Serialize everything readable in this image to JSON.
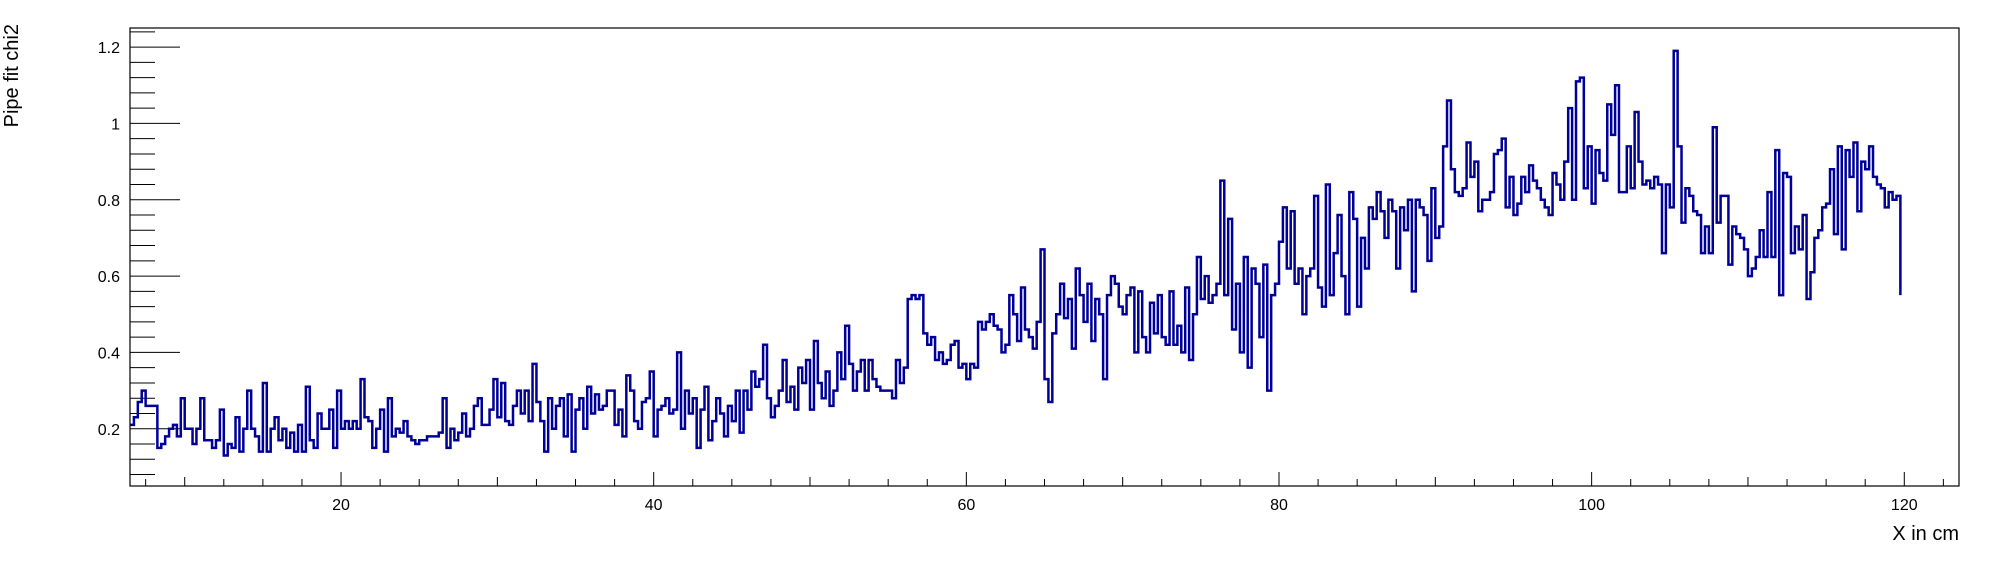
{
  "chart_data": {
    "type": "line",
    "style": "step-histogram",
    "title": "",
    "xlabel": "X in cm",
    "ylabel": "Pipe fit chi2",
    "xlim": [
      6.5,
      123.5
    ],
    "ylim": [
      0.05,
      1.25
    ],
    "xticks": [
      20,
      40,
      60,
      80,
      100,
      120
    ],
    "yticks": [
      0.2,
      0.4,
      0.6,
      0.8,
      1,
      1.2
    ],
    "xtick_labels": [
      "20",
      "40",
      "60",
      "80",
      "100",
      "120"
    ],
    "ytick_labels": [
      "0.2",
      "0.4",
      "0.6",
      "0.8",
      "1",
      "1.2"
    ],
    "grid": false,
    "legend": "none",
    "line_color": "#000099",
    "series": [
      {
        "x_start": 6.5,
        "bin_width": 0.25,
        "values": [
          0.21,
          0.23,
          0.27,
          0.3,
          0.26,
          0.26,
          0.26,
          0.15,
          0.16,
          0.18,
          0.2,
          0.21,
          0.18,
          0.28,
          0.2,
          0.2,
          0.16,
          0.2,
          0.28,
          0.17,
          0.17,
          0.15,
          0.17,
          0.25,
          0.13,
          0.16,
          0.15,
          0.23,
          0.14,
          0.2,
          0.3,
          0.2,
          0.18,
          0.14,
          0.32,
          0.14,
          0.2,
          0.23,
          0.17,
          0.2,
          0.15,
          0.19,
          0.14,
          0.21,
          0.14,
          0.31,
          0.17,
          0.15,
          0.24,
          0.2,
          0.2,
          0.25,
          0.15,
          0.3,
          0.2,
          0.22,
          0.2,
          0.22,
          0.2,
          0.33,
          0.23,
          0.22,
          0.15,
          0.2,
          0.25,
          0.14,
          0.28,
          0.18,
          0.2,
          0.19,
          0.22,
          0.18,
          0.17,
          0.16,
          0.17,
          0.17,
          0.18,
          0.18,
          0.18,
          0.19,
          0.28,
          0.15,
          0.2,
          0.17,
          0.19,
          0.24,
          0.18,
          0.2,
          0.26,
          0.28,
          0.21,
          0.21,
          0.25,
          0.33,
          0.23,
          0.32,
          0.22,
          0.21,
          0.26,
          0.3,
          0.24,
          0.3,
          0.22,
          0.37,
          0.27,
          0.22,
          0.14,
          0.28,
          0.2,
          0.26,
          0.28,
          0.18,
          0.29,
          0.14,
          0.25,
          0.28,
          0.2,
          0.31,
          0.24,
          0.29,
          0.25,
          0.26,
          0.3,
          0.3,
          0.21,
          0.25,
          0.18,
          0.34,
          0.3,
          0.22,
          0.2,
          0.27,
          0.28,
          0.35,
          0.18,
          0.25,
          0.26,
          0.28,
          0.24,
          0.25,
          0.4,
          0.2,
          0.3,
          0.24,
          0.28,
          0.15,
          0.25,
          0.31,
          0.17,
          0.22,
          0.28,
          0.24,
          0.18,
          0.26,
          0.22,
          0.3,
          0.19,
          0.3,
          0.25,
          0.35,
          0.31,
          0.33,
          0.42,
          0.28,
          0.23,
          0.26,
          0.3,
          0.38,
          0.27,
          0.31,
          0.25,
          0.36,
          0.32,
          0.38,
          0.25,
          0.43,
          0.32,
          0.28,
          0.35,
          0.26,
          0.3,
          0.4,
          0.33,
          0.47,
          0.37,
          0.3,
          0.35,
          0.38,
          0.3,
          0.38,
          0.33,
          0.31,
          0.3,
          0.3,
          0.3,
          0.28,
          0.38,
          0.32,
          0.36,
          0.54,
          0.55,
          0.54,
          0.55,
          0.45,
          0.42,
          0.44,
          0.38,
          0.4,
          0.37,
          0.38,
          0.42,
          0.43,
          0.36,
          0.37,
          0.33,
          0.37,
          0.36,
          0.48,
          0.46,
          0.48,
          0.5,
          0.47,
          0.46,
          0.4,
          0.42,
          0.55,
          0.5,
          0.43,
          0.57,
          0.46,
          0.44,
          0.41,
          0.48,
          0.67,
          0.33,
          0.27,
          0.45,
          0.5,
          0.58,
          0.49,
          0.54,
          0.41,
          0.62,
          0.55,
          0.48,
          0.58,
          0.43,
          0.54,
          0.5,
          0.33,
          0.55,
          0.6,
          0.58,
          0.52,
          0.5,
          0.55,
          0.57,
          0.4,
          0.56,
          0.44,
          0.4,
          0.53,
          0.45,
          0.55,
          0.44,
          0.42,
          0.56,
          0.42,
          0.47,
          0.4,
          0.57,
          0.38,
          0.5,
          0.65,
          0.54,
          0.6,
          0.53,
          0.55,
          0.58,
          0.85,
          0.55,
          0.75,
          0.46,
          0.58,
          0.4,
          0.65,
          0.36,
          0.62,
          0.58,
          0.44,
          0.63,
          0.3,
          0.55,
          0.58,
          0.69,
          0.78,
          0.62,
          0.77,
          0.58,
          0.62,
          0.5,
          0.6,
          0.62,
          0.81,
          0.57,
          0.52,
          0.84,
          0.55,
          0.66,
          0.76,
          0.6,
          0.5,
          0.82,
          0.75,
          0.52,
          0.7,
          0.62,
          0.78,
          0.75,
          0.82,
          0.77,
          0.7,
          0.8,
          0.77,
          0.62,
          0.78,
          0.72,
          0.8,
          0.56,
          0.8,
          0.78,
          0.76,
          0.64,
          0.83,
          0.7,
          0.73,
          0.94,
          1.06,
          0.88,
          0.82,
          0.81,
          0.83,
          0.95,
          0.86,
          0.9,
          0.77,
          0.8,
          0.8,
          0.82,
          0.92,
          0.93,
          0.96,
          0.78,
          0.86,
          0.76,
          0.79,
          0.86,
          0.82,
          0.89,
          0.85,
          0.83,
          0.8,
          0.78,
          0.76,
          0.87,
          0.84,
          0.8,
          0.9,
          1.04,
          0.8,
          1.11,
          1.12,
          0.83,
          0.94,
          0.79,
          0.93,
          0.87,
          0.85,
          1.05,
          0.97,
          1.1,
          0.82,
          0.82,
          0.94,
          0.83,
          1.03,
          0.9,
          0.84,
          0.85,
          0.83,
          0.86,
          0.84,
          0.66,
          0.84,
          0.78,
          1.19,
          0.94,
          0.74,
          0.83,
          0.81,
          0.77,
          0.76,
          0.66,
          0.73,
          0.66,
          0.99,
          0.74,
          0.81,
          0.81,
          0.63,
          0.73,
          0.71,
          0.7,
          0.67,
          0.6,
          0.62,
          0.65,
          0.72,
          0.65,
          0.82,
          0.65,
          0.93,
          0.55,
          0.87,
          0.86,
          0.66,
          0.73,
          0.67,
          0.76,
          0.54,
          0.61,
          0.7,
          0.72,
          0.78,
          0.79,
          0.88,
          0.71,
          0.94,
          0.67,
          0.93,
          0.86,
          0.95,
          0.77,
          0.9,
          0.88,
          0.94,
          0.86,
          0.84,
          0.83,
          0.78,
          0.82,
          0.8,
          0.81
        ]
      }
    ]
  }
}
